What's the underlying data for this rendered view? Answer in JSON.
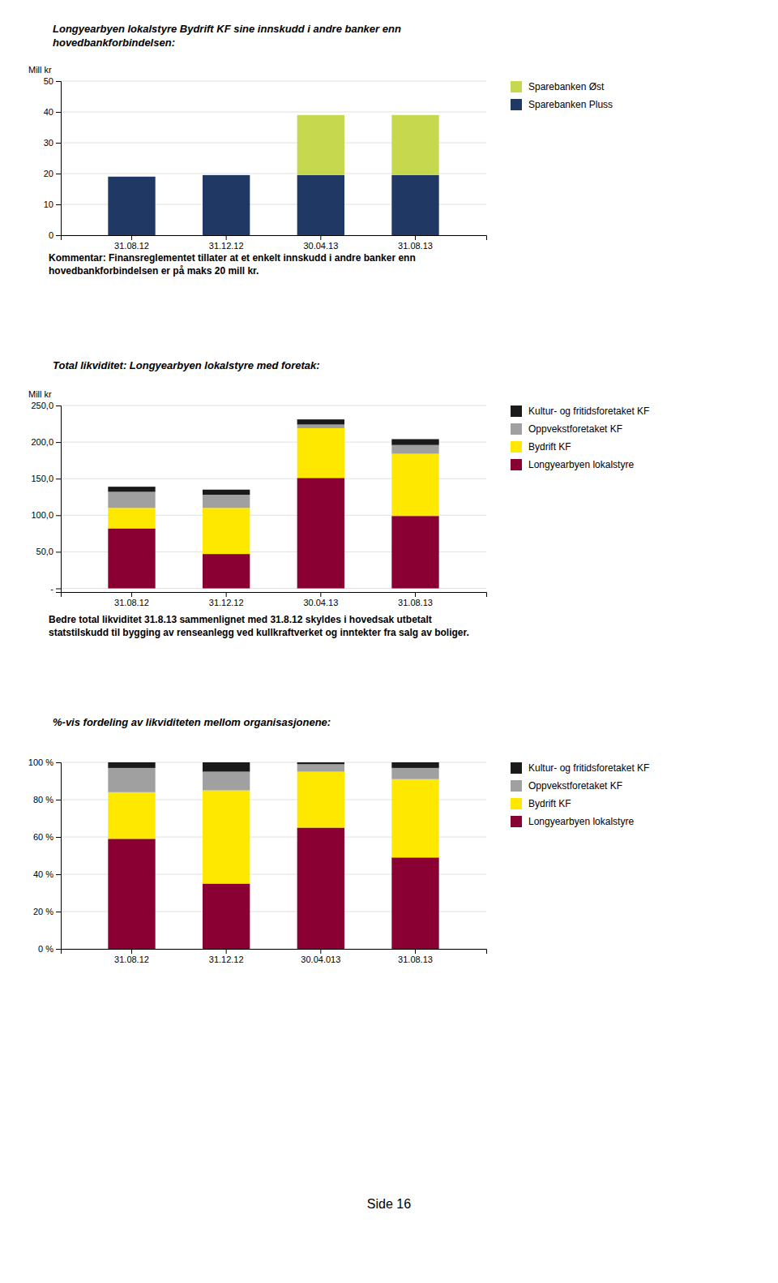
{
  "chart_data": [
    {
      "type": "bar",
      "stacked": true,
      "title": "Longyearbyen lokalstyre Bydrift KF sine innskudd i andre banker enn\nhovedbankforbindelsen:",
      "ylabel": "Mill kr",
      "categories": [
        "31.08.12",
        "31.12.12",
        "30.04.13",
        "31.08.13"
      ],
      "series": [
        {
          "name": "Sparebanken Pluss",
          "color": "#1F3864",
          "values": [
            19,
            19.5,
            19.5,
            19.5
          ]
        },
        {
          "name": "Sparebanken Øst",
          "color": "#C5D84E",
          "values": [
            0,
            0,
            19.5,
            19.5
          ]
        }
      ],
      "ylim": [
        0,
        50
      ],
      "yticks": [
        0,
        10,
        20,
        30,
        40,
        50
      ],
      "grid": true,
      "legend": "upper right",
      "annotations": [
        "Kommentar: Finansreglementet tillater at et enkelt innskudd i andre banker enn\nhovedbankforbindelsen er på maks 20 mill kr."
      ]
    },
    {
      "type": "bar",
      "stacked": true,
      "title": "Total likviditet: Longyearbyen lokalstyre med foretak:",
      "ylabel": "Mill kr",
      "categories": [
        "31.08.12",
        "31.12.12",
        "30.04.13",
        "31.08.13"
      ],
      "series": [
        {
          "name": "Longyearbyen lokalstyre",
          "color": "#8B0032",
          "values": [
            82,
            47,
            151,
            99
          ]
        },
        {
          "name": "Bydrift KF",
          "color": "#FFE800",
          "values": [
            28,
            63,
            68,
            85
          ]
        },
        {
          "name": "Oppvekstforetaket KF",
          "color": "#A0A0A0",
          "values": [
            22,
            18,
            5,
            12
          ]
        },
        {
          "name": "Kultur- og fritidsforetaket KF",
          "color": "#1A1A1A",
          "values": [
            7,
            7,
            7,
            8
          ]
        }
      ],
      "ylim": [
        -5,
        250
      ],
      "yticks": [
        {
          "value": 0,
          "label": "-"
        },
        {
          "value": 50,
          "label": "50,0"
        },
        {
          "value": 100,
          "label": "100,0"
        },
        {
          "value": 150,
          "label": "150,0"
        },
        {
          "value": 200,
          "label": "200,0"
        },
        {
          "value": 250,
          "label": "250,0"
        }
      ],
      "grid": true,
      "legend": "upper right",
      "annotations": [
        "Bedre total likviditet 31.8.13 sammenlignet med 31.8.12 skyldes i hovedsak utbetalt\nstatstilskudd til bygging av renseanlegg ved kullkraftverket og inntekter fra salg av boliger."
      ]
    },
    {
      "type": "bar",
      "stacked": true,
      "title": "%-vis fordeling av likviditeten mellom organisasjonene:",
      "categories": [
        "31.08.12",
        "31.12.12",
        "30.04.013",
        "31.08.13"
      ],
      "series": [
        {
          "name": "Longyearbyen lokalstyre",
          "color": "#8B0032",
          "values": [
            59,
            35,
            65,
            49
          ]
        },
        {
          "name": "Bydrift KF",
          "color": "#FFE800",
          "values": [
            25,
            50,
            30,
            42
          ]
        },
        {
          "name": "Oppvekstforetaket KF",
          "color": "#A0A0A0",
          "values": [
            13,
            10,
            4,
            6
          ]
        },
        {
          "name": "Kultur- og fritidsforetaket KF",
          "color": "#1A1A1A",
          "values": [
            3,
            5,
            1,
            3
          ]
        }
      ],
      "ylim": [
        0,
        100
      ],
      "yticks": [
        {
          "value": 0,
          "label": "0 %"
        },
        {
          "value": 20,
          "label": "20 %"
        },
        {
          "value": 40,
          "label": "40 %"
        },
        {
          "value": 60,
          "label": "60 %"
        },
        {
          "value": 80,
          "label": "80 %"
        },
        {
          "value": 100,
          "label": "100 %"
        }
      ],
      "grid": true,
      "legend": "upper right"
    }
  ],
  "footer": "Side 16"
}
